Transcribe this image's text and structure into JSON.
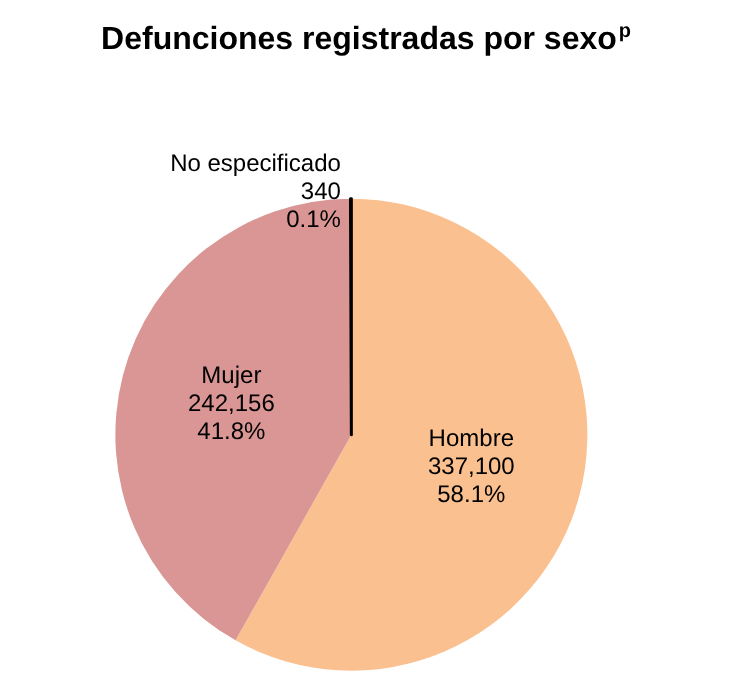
{
  "chart_data": {
    "type": "pie",
    "title": "Defunciones registradas por sexo$^{p}$",
    "categories": [
      "Hombre",
      "Mujer",
      "No especificado"
    ],
    "values": [
      337100,
      242156,
      340
    ],
    "value_labels": [
      "337,100\n58.1%",
      "242,156\n41.8%",
      "340\n0.1%"
    ],
    "colors": [
      "#fac08f",
      "#d99694",
      "#000000"
    ]
  }
}
